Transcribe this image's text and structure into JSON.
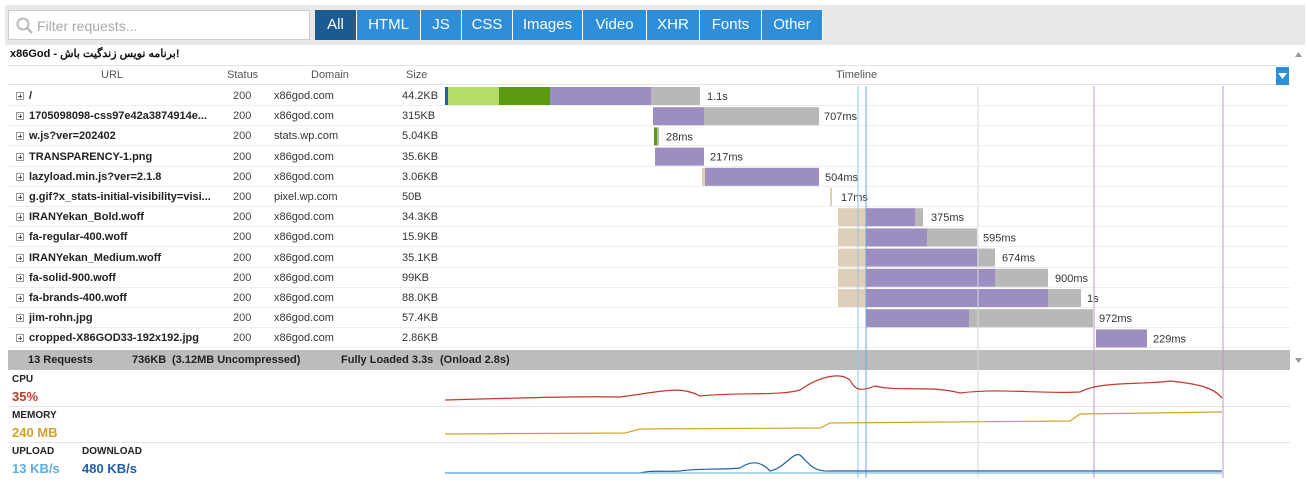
{
  "search": {
    "placeholder": "Filter requests..."
  },
  "filter_tabs": [
    "All",
    "HTML",
    "JS",
    "CSS",
    "Images",
    "Video",
    "XHR",
    "Fonts",
    "Other"
  ],
  "active_tab": "All",
  "page_title": "x86God - برنامه نویس زندگیت باش!",
  "columns": {
    "url": "URL",
    "status": "Status",
    "domain": "Domain",
    "size": "Size",
    "timeline": "Timeline"
  },
  "requests": [
    {
      "url": "/",
      "status": "200",
      "domain": "x86god.com",
      "size": "44.2KB",
      "time": "1.1s"
    },
    {
      "url": "1705098098-css97e42a3874914e...",
      "status": "200",
      "domain": "x86god.com",
      "size": "315KB",
      "time": "707ms"
    },
    {
      "url": "w.js?ver=202402",
      "status": "200",
      "domain": "stats.wp.com",
      "size": "5.04KB",
      "time": "28ms"
    },
    {
      "url": "TRANSPARENCY-1.png",
      "status": "200",
      "domain": "x86god.com",
      "size": "35.6KB",
      "time": "217ms"
    },
    {
      "url": "lazyload.min.js?ver=2.1.8",
      "status": "200",
      "domain": "x86god.com",
      "size": "3.06KB",
      "time": "504ms"
    },
    {
      "url": "g.gif?x_stats-initial-visibility=visi...",
      "status": "200",
      "domain": "pixel.wp.com",
      "size": "50B",
      "time": "17ms"
    },
    {
      "url": "IRANYekan_Bold.woff",
      "status": "200",
      "domain": "x86god.com",
      "size": "34.3KB",
      "time": "375ms"
    },
    {
      "url": "fa-regular-400.woff",
      "status": "200",
      "domain": "x86god.com",
      "size": "15.9KB",
      "time": "595ms"
    },
    {
      "url": "IRANYekan_Medium.woff",
      "status": "200",
      "domain": "x86god.com",
      "size": "35.1KB",
      "time": "674ms"
    },
    {
      "url": "fa-solid-900.woff",
      "status": "200",
      "domain": "x86god.com",
      "size": "99KB",
      "time": "900ms"
    },
    {
      "url": "fa-brands-400.woff",
      "status": "200",
      "domain": "x86god.com",
      "size": "88.0KB",
      "time": "1s"
    },
    {
      "url": "jim-rohn.jpg",
      "status": "200",
      "domain": "x86god.com",
      "size": "57.4KB",
      "time": "972ms"
    },
    {
      "url": "cropped-X86GOD33-192x192.jpg",
      "status": "200",
      "domain": "x86god.com",
      "size": "2.86KB",
      "time": "229ms"
    }
  ],
  "summary": {
    "requests": "13 Requests",
    "size": "736KB",
    "uncompressed": "(3.12MB Uncompressed)",
    "fully_loaded": "Fully Loaded 3.3s",
    "onload": "(Onload 2.8s)"
  },
  "metrics": {
    "cpu_label": "CPU",
    "cpu_value": "35%",
    "memory_label": "MEMORY",
    "memory_value": "240 MB",
    "upload_label": "UPLOAD",
    "upload_value": "13 KB/s",
    "download_label": "DOWNLOAD",
    "download_value": "480 KB/s"
  },
  "colors": {
    "accent": "#2f8ed8",
    "active_tab": "#1a5c92",
    "dns": "#e0cfb8",
    "connect": "#b5dd6a",
    "ssl": "#5a9a10",
    "wait": "#9d8ec1",
    "receive": "#b8b8b8",
    "cpu": "#c0392b",
    "memory": "#d4a02a",
    "upload": "#5aaee0",
    "download": "#1f5fa8"
  }
}
